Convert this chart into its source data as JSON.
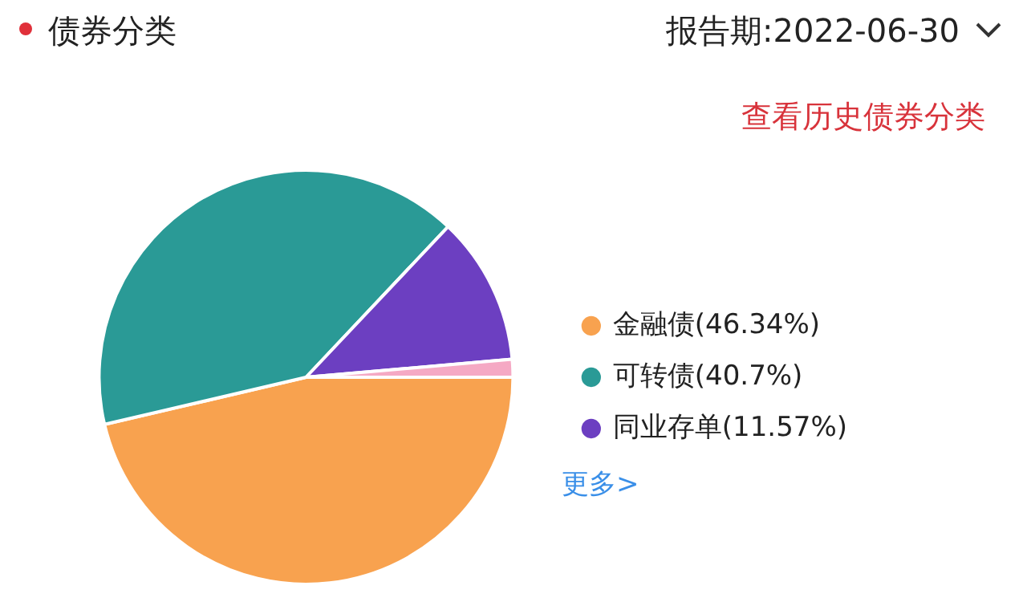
{
  "chart_data": {
    "type": "pie",
    "title": "债券分类",
    "subtitle": "报告期:2022-06-30",
    "categories": [
      "金融债(46.34%)",
      "可转债(40.7%)",
      "同业存单(11.57%)",
      null
    ],
    "values": [
      46.34,
      40.7,
      11.57,
      1.39
    ],
    "colors": [
      "#f8a24f",
      "#2a9a96",
      "#6c3fc1",
      "#f5a9c4"
    ],
    "legend": "right",
    "annotations": [
      "查看历史债券分类",
      "更多>"
    ]
  }
}
